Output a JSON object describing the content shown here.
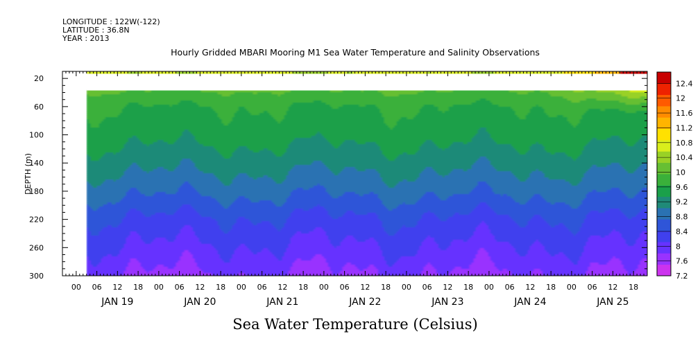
{
  "header": {
    "longitude": "LONGITUDE : 122W(-122)",
    "latitude": "LATITUDE : 36.8N",
    "year": "YEAR : 2013",
    "title": "Hourly Gridded MBARI Mooring M1 Sea Water Temperature and Salinity Observations"
  },
  "footer": {
    "variable_label": "Sea Water Temperature (Celsius)"
  },
  "chart_data": {
    "type": "heatmap",
    "title": "Hourly Gridded MBARI Mooring M1 Sea Water Temperature and Salinity Observations",
    "ylabel": "DEPTH (m)",
    "xlabel": "",
    "variable": "Sea Water Temperature (Celsius)",
    "x_hour_ticks": [
      "00",
      "06",
      "12",
      "18",
      "00",
      "06",
      "12",
      "18",
      "00",
      "06",
      "12",
      "18",
      "00",
      "06",
      "12",
      "18",
      "00",
      "06",
      "12",
      "18",
      "00",
      "06",
      "12",
      "18",
      "00",
      "06",
      "12",
      "18"
    ],
    "x_date_labels": [
      "JAN 19",
      "JAN 20",
      "JAN 21",
      "JAN 22",
      "JAN 23",
      "JAN 24",
      "JAN 25"
    ],
    "x_range": [
      "2013-01-18 20:00",
      "2013-01-25 22:00"
    ],
    "data_x_range": [
      "2013-01-19 03:00",
      "2013-01-25 22:00"
    ],
    "y_ticks": [
      20,
      60,
      100,
      140,
      180,
      220,
      260,
      300
    ],
    "y_range": [
      300,
      10
    ],
    "y_inverted": true,
    "colorbar_levels": [
      7.2,
      7.6,
      8,
      8.4,
      8.8,
      9.2,
      9.6,
      10,
      10.4,
      10.8,
      11.2,
      11.6,
      12,
      12.4
    ],
    "colorbar_colors": [
      "#cc33ee",
      "#9933ff",
      "#6633ff",
      "#4040ee",
      "#2f55d8",
      "#2a72b2",
      "#1f8a78",
      "#1aa04a",
      "#3ab03a",
      "#66bf33",
      "#99d126",
      "#d9ee1c",
      "#ffe100",
      "#ffb400",
      "#ff8c00",
      "#ff5a00",
      "#ee2200",
      "#c80000"
    ],
    "missing_depth_band_m": [
      14,
      37
    ],
    "depth_profile_c": [
      {
        "depth": 10,
        "t": 11.3
      },
      {
        "depth": 40,
        "t": 10.35
      },
      {
        "depth": 60,
        "t": 10.0
      },
      {
        "depth": 100,
        "t": 9.75
      },
      {
        "depth": 140,
        "t": 9.35
      },
      {
        "depth": 180,
        "t": 8.9
      },
      {
        "depth": 220,
        "t": 8.35
      },
      {
        "depth": 260,
        "t": 7.95
      },
      {
        "depth": 300,
        "t": 7.55
      }
    ],
    "grid": false,
    "legend": "right colorbar"
  }
}
